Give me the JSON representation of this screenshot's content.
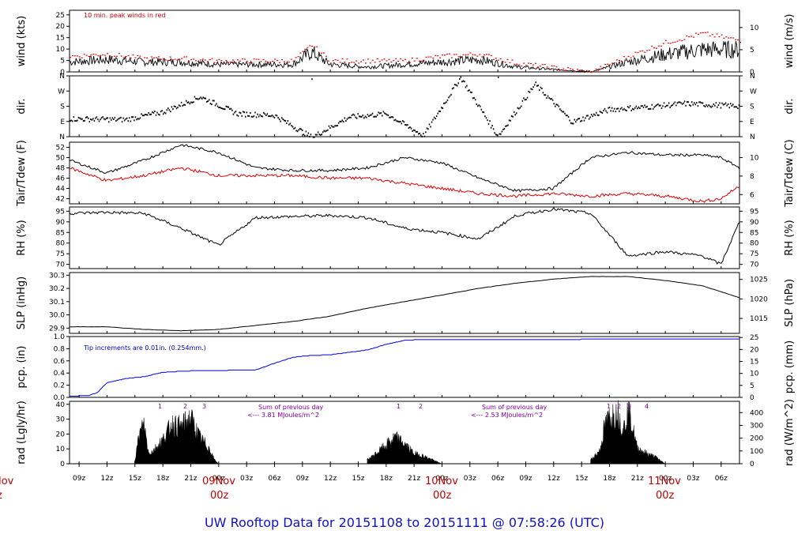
{
  "title": "UW Rooftop Data for 20151108  to  20151111 @ 07:58:26  (UTC)",
  "colors": {
    "series": "#000000",
    "peak": "#e00000",
    "dew": "#e00000",
    "precip": "#0000e0",
    "note_red": "#d00000",
    "note_blue": "#0000c0",
    "note_purple": "#8000a0",
    "title": "#1010c8",
    "day": "#c00000"
  },
  "x_axis": {
    "hour_ticks": [
      "09z",
      "12z",
      "15z",
      "18z",
      "21z",
      "00z",
      "03z",
      "06z",
      "09z",
      "12z",
      "15z",
      "18z",
      "21z",
      "00z",
      "03z",
      "06z",
      "09z",
      "12z",
      "15z",
      "18z",
      "21z",
      "00z",
      "03z",
      "06z"
    ],
    "day_labels": [
      {
        "line1": "Nov",
        "line2": "z"
      },
      {
        "line1": "09Nov",
        "line2": "00z"
      },
      {
        "line1": "10Nov",
        "line2": "00z"
      },
      {
        "line1": "11Nov",
        "line2": "00z"
      }
    ]
  },
  "panels": {
    "wind": {
      "ylabel_left": "wind (kts)",
      "ylabel_right": "wind (m/s)",
      "left_ticks": [
        "0",
        "5",
        "10",
        "15",
        "20",
        "25"
      ],
      "right_ticks": [
        "0",
        "5",
        "10"
      ],
      "note": "10 min. peak winds in red"
    },
    "dir": {
      "ylabel_left": "dir.",
      "ylabel_right": "dir.",
      "left_ticks": [
        "N",
        "E",
        "S",
        "W",
        "N"
      ],
      "right_ticks": [
        "N",
        "E",
        "S",
        "W",
        "N"
      ]
    },
    "temp": {
      "ylabel_left": "Tair/Tdew (F)",
      "ylabel_right": "Tair/Tdew (C)",
      "left_ticks": [
        "42",
        "44",
        "46",
        "48",
        "50",
        "52"
      ],
      "right_ticks": [
        "6",
        "8",
        "10"
      ]
    },
    "rh": {
      "ylabel_left": "RH (%)",
      "ylabel_right": "RH (%)",
      "left_ticks": [
        "70",
        "75",
        "80",
        "85",
        "90",
        "95"
      ],
      "right_ticks": [
        "70",
        "75",
        "80",
        "85",
        "90",
        "95"
      ]
    },
    "slp": {
      "ylabel_left": "SLP (inHg)",
      "ylabel_right": "SLP (hPa)",
      "left_ticks": [
        "29.9",
        "30.0",
        "30.1",
        "30.2",
        "30.3"
      ],
      "right_ticks": [
        "1015",
        "1020",
        "1025"
      ]
    },
    "pcp": {
      "ylabel_left": "pcp. (in)",
      "ylabel_right": "pcp. (mm)",
      "left_ticks": [
        "0.0",
        "0.2",
        "0.4",
        "0.6",
        "0.8",
        "1.0"
      ],
      "right_ticks": [
        "0",
        "5",
        "10",
        "15",
        "20",
        "25"
      ],
      "note": "Tip increments are 0.01in. (0.254mm.)"
    },
    "rad": {
      "ylabel_left": "rad (Lgly/hr)",
      "ylabel_right": "rad (W/m^2)",
      "left_ticks": [
        "0",
        "10",
        "20",
        "30",
        "40"
      ],
      "right_ticks": [
        "0",
        "100",
        "200",
        "300",
        "400"
      ],
      "notes": [
        {
          "line1": "Sum of previous day",
          "line2": "<--- 3.81 MJoules/m^2"
        },
        {
          "line1": "Sum of previous day",
          "line2": "<--- 2.53 MJoules/m^2"
        }
      ],
      "markers": [
        "1",
        "2",
        "3",
        "1",
        "2",
        "1",
        "2",
        "3",
        "4"
      ]
    }
  },
  "chart_data": {
    "type": "line",
    "title": "UW Rooftop Data for 20151108  to  20151111 @ 07:58:26  (UTC)",
    "x_units": "hours UTC since 2015-11-08 07:58",
    "x_range": [
      0,
      72
    ],
    "wind": {
      "ylabel": "wind (kts)",
      "ylim": [
        0,
        27
      ],
      "x": [
        0,
        4,
        8,
        12,
        16,
        20,
        24,
        26,
        28,
        32,
        36,
        40,
        44,
        48,
        52,
        56,
        60,
        64,
        68,
        72
      ],
      "values": [
        4,
        5,
        4,
        4,
        3,
        3,
        3,
        8,
        3,
        2,
        3,
        4,
        5,
        2,
        1,
        0,
        4,
        7,
        9,
        9
      ],
      "peak_values": [
        7,
        8,
        6,
        6,
        5,
        5,
        5,
        12,
        5,
        5,
        5,
        7,
        8,
        4,
        2,
        0,
        7,
        13,
        17,
        14
      ]
    },
    "direction": {
      "ylabel": "dir.",
      "categories": [
        "N",
        "E",
        "S",
        "W",
        "N"
      ],
      "x": [
        0,
        6,
        10,
        14,
        18,
        22,
        26,
        30,
        34,
        38,
        42,
        46,
        50,
        54,
        58,
        62,
        66,
        70,
        72
      ],
      "deg": [
        110,
        105,
        150,
        240,
        140,
        130,
        0,
        120,
        140,
        10,
        355,
        5,
        315,
        90,
        165,
        180,
        200,
        190,
        185
      ]
    },
    "temperature": {
      "ylabel": "Tair/Tdew (F)",
      "ylim": [
        41,
        53
      ],
      "x": [
        0,
        4,
        8,
        12,
        16,
        20,
        24,
        28,
        32,
        36,
        40,
        44,
        48,
        52,
        56,
        60,
        64,
        68,
        70,
        72
      ],
      "tair": [
        49.5,
        47,
        49.5,
        52.5,
        51,
        48,
        47.5,
        47.5,
        48,
        50,
        49,
        46,
        43.5,
        44,
        50,
        51,
        50.5,
        50.5,
        50,
        48
      ],
      "tdew": [
        48,
        45.5,
        46.5,
        48,
        46.5,
        46.5,
        46.5,
        46,
        46,
        45,
        44,
        43,
        42.5,
        43,
        42.5,
        43,
        42.5,
        41.5,
        42,
        44.5
      ]
    },
    "rh": {
      "ylabel": "RH (%)",
      "ylim": [
        68,
        97
      ],
      "x": [
        0,
        4,
        8,
        12,
        16,
        20,
        24,
        28,
        32,
        36,
        40,
        44,
        48,
        52,
        56,
        60,
        64,
        68,
        70,
        72
      ],
      "values": [
        94,
        94.5,
        94,
        87,
        79,
        92,
        92.5,
        93,
        92,
        87,
        85,
        82,
        93,
        96,
        94,
        74,
        76,
        74,
        70,
        90
      ]
    },
    "slp": {
      "ylabel": "SLP (inHg)",
      "ylim": [
        29.86,
        30.32
      ],
      "x": [
        0,
        4,
        8,
        12,
        16,
        20,
        24,
        28,
        32,
        36,
        40,
        44,
        48,
        52,
        56,
        60,
        64,
        68,
        72
      ],
      "values": [
        29.91,
        29.91,
        29.89,
        29.88,
        29.89,
        29.92,
        29.95,
        29.99,
        30.05,
        30.1,
        30.15,
        30.2,
        30.24,
        30.27,
        30.29,
        30.29,
        30.26,
        30.22,
        30.13
      ]
    },
    "precip": {
      "ylabel": "pcp. (in)",
      "ylim": [
        0,
        1.0
      ],
      "x": [
        0,
        2,
        3,
        4,
        6,
        8,
        10,
        12,
        14,
        20,
        22,
        24,
        26,
        28,
        30,
        32,
        34,
        36,
        38,
        72
      ],
      "values": [
        0.02,
        0.03,
        0.08,
        0.24,
        0.31,
        0.34,
        0.41,
        0.43,
        0.44,
        0.45,
        0.56,
        0.66,
        0.69,
        0.7,
        0.74,
        0.78,
        0.87,
        0.94,
        0.95,
        0.96
      ]
    },
    "radiation": {
      "ylabel": "rad (Lgly/hr)",
      "ylim": [
        0,
        42
      ],
      "x": [
        7,
        7.5,
        8,
        8.5,
        9,
        10,
        11,
        12,
        13,
        14,
        15,
        15.5,
        16,
        17,
        32,
        33,
        34,
        35,
        36,
        37,
        38,
        39,
        40,
        56,
        57,
        57.5,
        58,
        58.5,
        59,
        59.5,
        60,
        60.5,
        61,
        62,
        63,
        64
      ],
      "values": [
        2,
        22,
        30,
        8,
        10,
        18,
        30,
        28,
        35,
        20,
        12,
        4,
        0,
        0,
        3,
        8,
        14,
        20,
        15,
        8,
        6,
        3,
        0,
        3,
        10,
        28,
        35,
        38,
        38,
        25,
        40,
        28,
        12,
        8,
        5,
        0
      ]
    }
  }
}
